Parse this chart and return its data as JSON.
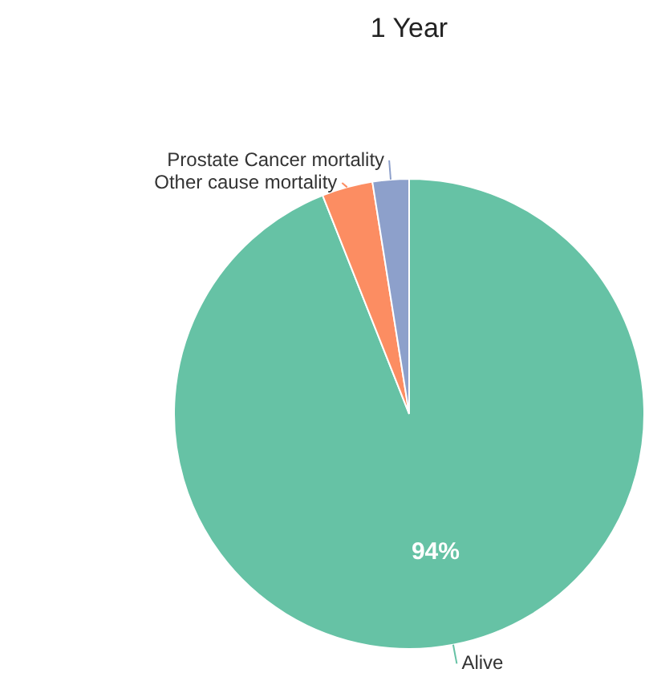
{
  "chart_data": {
    "type": "pie",
    "title": "1 Year",
    "categories": [
      "Alive",
      "Other cause mortality",
      "Prostate Cancer mortality"
    ],
    "values": [
      94,
      3.5,
      2.5
    ],
    "colors": [
      "#66c2a5",
      "#fc8d62",
      "#8da0cb"
    ],
    "value_labels": [
      "94%",
      null,
      null
    ],
    "legend": false
  }
}
